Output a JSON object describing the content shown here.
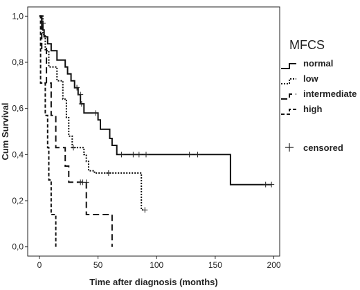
{
  "chart_data": {
    "type": "line",
    "subtype": "kaplan-meier-step",
    "xlabel": "Time after diagnosis (months)",
    "ylabel": "Cum Survival",
    "xlim": [
      -10,
      205
    ],
    "ylim": [
      -0.04,
      1.04
    ],
    "x_ticks": [
      0,
      50,
      100,
      150,
      200
    ],
    "x_tick_labels": [
      "0",
      "50",
      "100",
      "150",
      "200"
    ],
    "y_ticks": [
      0.0,
      0.2,
      0.4,
      0.6,
      0.8,
      1.0
    ],
    "y_tick_labels": [
      "0,0",
      "0,2",
      "0,4",
      "0,6",
      "0,8",
      "1,0"
    ],
    "grid": false,
    "legend": {
      "title": "MFCS",
      "placement": "right",
      "censored_label": "censored"
    },
    "series": [
      {
        "name": "normal",
        "dash": "solid",
        "steps": [
          [
            0,
            1.0
          ],
          [
            2,
            0.97
          ],
          [
            3,
            0.94
          ],
          [
            4,
            0.91
          ],
          [
            7,
            0.88
          ],
          [
            10,
            0.85
          ],
          [
            15,
            0.81
          ],
          [
            22,
            0.78
          ],
          [
            24,
            0.75
          ],
          [
            27,
            0.72
          ],
          [
            30,
            0.69
          ],
          [
            33,
            0.66
          ],
          [
            35,
            0.62
          ],
          [
            38,
            0.58
          ],
          [
            50,
            0.55
          ],
          [
            52,
            0.51
          ],
          [
            60,
            0.47
          ],
          [
            62,
            0.44
          ],
          [
            66,
            0.4
          ],
          [
            162,
            0.4
          ],
          [
            163,
            0.27
          ],
          [
            198,
            0.27
          ]
        ],
        "censored": [
          [
            3,
            0.97
          ],
          [
            32,
            0.69
          ],
          [
            35,
            0.66
          ],
          [
            36,
            0.62
          ],
          [
            48,
            0.58
          ],
          [
            70,
            0.4
          ],
          [
            80,
            0.4
          ],
          [
            85,
            0.4
          ],
          [
            91,
            0.4
          ],
          [
            128,
            0.4
          ],
          [
            135,
            0.4
          ],
          [
            193,
            0.27
          ],
          [
            198,
            0.27
          ]
        ]
      },
      {
        "name": "low",
        "dash": "dotted",
        "steps": [
          [
            0,
            1.0
          ],
          [
            3,
            0.92
          ],
          [
            5,
            0.85
          ],
          [
            8,
            0.78
          ],
          [
            15,
            0.72
          ],
          [
            20,
            0.64
          ],
          [
            23,
            0.56
          ],
          [
            25,
            0.48
          ],
          [
            28,
            0.43
          ],
          [
            38,
            0.4
          ],
          [
            40,
            0.37
          ],
          [
            42,
            0.33
          ],
          [
            47,
            0.32
          ],
          [
            86,
            0.32
          ],
          [
            87,
            0.16
          ],
          [
            89,
            0.16
          ]
        ],
        "censored": [
          [
            29,
            0.43
          ],
          [
            59,
            0.32
          ],
          [
            90,
            0.16
          ]
        ]
      },
      {
        "name": "intermediate",
        "dash": "dashed",
        "steps": [
          [
            0,
            1.0
          ],
          [
            2,
            0.86
          ],
          [
            6,
            0.71
          ],
          [
            10,
            0.57
          ],
          [
            14,
            0.43
          ],
          [
            22,
            0.35
          ],
          [
            25,
            0.28
          ],
          [
            35,
            0.28
          ],
          [
            40,
            0.14
          ],
          [
            60,
            0.14
          ],
          [
            62,
            0.0
          ]
        ],
        "censored": [
          [
            35,
            0.28
          ],
          [
            37,
            0.28
          ],
          [
            40,
            0.28
          ]
        ]
      },
      {
        "name": "high",
        "dash": "short-dash",
        "steps": [
          [
            0,
            1.0
          ],
          [
            1,
            0.71
          ],
          [
            5,
            0.57
          ],
          [
            7,
            0.43
          ],
          [
            8,
            0.29
          ],
          [
            10,
            0.14
          ],
          [
            14,
            0.0
          ]
        ],
        "censored": []
      }
    ]
  }
}
